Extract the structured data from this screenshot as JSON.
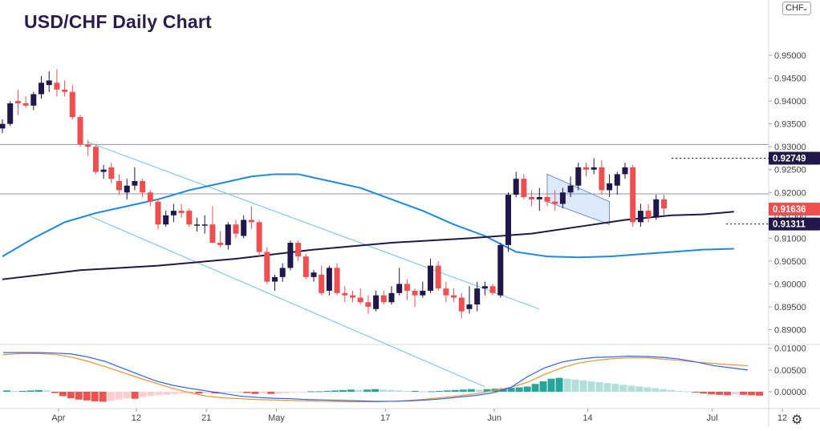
{
  "title": "USD/CHF Daily Chart",
  "currency_selector": {
    "label": "CHF",
    "icon": "chevron-down-icon"
  },
  "settings_icon": "gear-icon",
  "colors": {
    "up": "#22174a",
    "down": "#ef4f4f",
    "ma50": "#1e88e5",
    "ma200": "#22174a",
    "channel": "#6ec1ef",
    "macd": "#2962ff",
    "signal": "#f0912c",
    "hist_up_strong": "#26a69a",
    "hist_up_weak": "#b2dfdb",
    "hist_down_strong": "#ef5350",
    "hist_down_weak": "#ffcdd2"
  },
  "chart_data": [
    {
      "type": "candlestick",
      "title": "USD/CHF Daily Chart",
      "ylim": [
        0.885,
        0.96
      ],
      "y_ticks": [
        "0.95000",
        "0.94500",
        "0.94000",
        "0.93500",
        "0.93000",
        "0.92500",
        "0.92000",
        "0.91500",
        "0.91000",
        "0.90500",
        "0.90000",
        "0.89500",
        "0.89000"
      ],
      "x_ticks": [
        {
          "label": "Apr",
          "index": 7
        },
        {
          "label": "12",
          "index": 17
        },
        {
          "label": "21",
          "index": 26
        },
        {
          "label": "May",
          "index": 35
        },
        {
          "label": "17",
          "index": 49
        },
        {
          "label": "Jun",
          "index": 63
        },
        {
          "label": "14",
          "index": 75
        },
        {
          "label": "Jul",
          "index": 91
        },
        {
          "label": "12",
          "index": 100
        }
      ],
      "candles": [
        [
          0.934,
          0.936,
          0.933,
          0.935
        ],
        [
          0.935,
          0.94,
          0.9345,
          0.9395
        ],
        [
          0.94,
          0.9425,
          0.937,
          0.9395
        ],
        [
          0.9395,
          0.941,
          0.9385,
          0.939
        ],
        [
          0.939,
          0.942,
          0.938,
          0.9415
        ],
        [
          0.9415,
          0.9455,
          0.9405,
          0.944
        ],
        [
          0.9435,
          0.9465,
          0.942,
          0.9445
        ],
        [
          0.944,
          0.947,
          0.941,
          0.9425
        ],
        [
          0.9425,
          0.9445,
          0.941,
          0.942
        ],
        [
          0.942,
          0.9435,
          0.936,
          0.9365
        ],
        [
          0.9365,
          0.937,
          0.93,
          0.9305
        ],
        [
          0.9305,
          0.9315,
          0.928,
          0.93
        ],
        [
          0.93,
          0.9305,
          0.924,
          0.9245
        ],
        [
          0.9245,
          0.926,
          0.923,
          0.925
        ],
        [
          0.9255,
          0.9265,
          0.922,
          0.923
        ],
        [
          0.9225,
          0.924,
          0.9195,
          0.9205
        ],
        [
          0.92,
          0.923,
          0.9185,
          0.9215
        ],
        [
          0.9215,
          0.9255,
          0.9205,
          0.9225
        ],
        [
          0.9225,
          0.923,
          0.919,
          0.92
        ],
        [
          0.92,
          0.9205,
          0.917,
          0.918
        ],
        [
          0.918,
          0.9185,
          0.912,
          0.913
        ],
        [
          0.913,
          0.916,
          0.9125,
          0.915
        ],
        [
          0.915,
          0.9175,
          0.9135,
          0.916
        ],
        [
          0.916,
          0.9175,
          0.9145,
          0.9155
        ],
        [
          0.916,
          0.9165,
          0.9125,
          0.913
        ],
        [
          0.913,
          0.9145,
          0.9115,
          0.913
        ],
        [
          0.913,
          0.915,
          0.911,
          0.913
        ],
        [
          0.913,
          0.917,
          0.9095,
          0.909
        ],
        [
          0.909,
          0.9115,
          0.908,
          0.9085
        ],
        [
          0.9085,
          0.9135,
          0.9075,
          0.913
        ],
        [
          0.913,
          0.914,
          0.91,
          0.911
        ],
        [
          0.9105,
          0.915,
          0.91,
          0.914
        ],
        [
          0.914,
          0.917,
          0.912,
          0.9135
        ],
        [
          0.9135,
          0.914,
          0.906,
          0.907
        ],
        [
          0.907,
          0.908,
          0.9,
          0.9005
        ],
        [
          0.9005,
          0.902,
          0.8985,
          0.9015
        ],
        [
          0.9015,
          0.9045,
          0.9005,
          0.9035
        ],
        [
          0.9035,
          0.9095,
          0.903,
          0.909
        ],
        [
          0.909,
          0.9095,
          0.905,
          0.906
        ],
        [
          0.906,
          0.9065,
          0.901,
          0.9015
        ],
        [
          0.9015,
          0.903,
          0.9005,
          0.9025
        ],
        [
          0.902,
          0.904,
          0.8975,
          0.898
        ],
        [
          0.8985,
          0.904,
          0.8975,
          0.9035
        ],
        [
          0.9035,
          0.9045,
          0.8975,
          0.898
        ],
        [
          0.898,
          0.8995,
          0.896,
          0.8975
        ],
        [
          0.8975,
          0.8985,
          0.896,
          0.897
        ],
        [
          0.897,
          0.899,
          0.8955,
          0.896
        ],
        [
          0.896,
          0.8975,
          0.8935,
          0.895
        ],
        [
          0.8945,
          0.8985,
          0.894,
          0.8975
        ],
        [
          0.8975,
          0.8985,
          0.8955,
          0.896
        ],
        [
          0.896,
          0.8995,
          0.8955,
          0.898
        ],
        [
          0.898,
          0.9035,
          0.8975,
          0.9
        ],
        [
          0.9,
          0.901,
          0.8965,
          0.8985
        ],
        [
          0.8985,
          0.899,
          0.895,
          0.8975
        ],
        [
          0.8975,
          0.9005,
          0.897,
          0.8985
        ],
        [
          0.8985,
          0.9055,
          0.898,
          0.904
        ],
        [
          0.904,
          0.905,
          0.8985,
          0.899
        ],
        [
          0.899,
          0.9005,
          0.896,
          0.8975
        ],
        [
          0.8975,
          0.899,
          0.896,
          0.897
        ],
        [
          0.897,
          0.898,
          0.8925,
          0.894
        ],
        [
          0.8945,
          0.8995,
          0.8935,
          0.8955
        ],
        [
          0.8955,
          0.9005,
          0.894,
          0.899
        ],
        [
          0.899,
          0.9005,
          0.8975,
          0.8995
        ],
        [
          0.8995,
          0.9,
          0.8975,
          0.898
        ],
        [
          0.8975,
          0.909,
          0.897,
          0.9085
        ],
        [
          0.9085,
          0.92,
          0.907,
          0.9195
        ],
        [
          0.9195,
          0.9245,
          0.919,
          0.923
        ],
        [
          0.923,
          0.924,
          0.9185,
          0.919
        ],
        [
          0.919,
          0.9205,
          0.917,
          0.9185
        ],
        [
          0.9185,
          0.921,
          0.916,
          0.919
        ],
        [
          0.919,
          0.92,
          0.917,
          0.918
        ],
        [
          0.918,
          0.9205,
          0.916,
          0.9175
        ],
        [
          0.9175,
          0.921,
          0.9165,
          0.92
        ],
        [
          0.92,
          0.9235,
          0.919,
          0.9215
        ],
        [
          0.9215,
          0.9265,
          0.9205,
          0.9255
        ],
        [
          0.9255,
          0.9265,
          0.9235,
          0.925
        ],
        [
          0.925,
          0.9275,
          0.924,
          0.9255
        ],
        [
          0.9255,
          0.927,
          0.9195,
          0.9205
        ],
        [
          0.9205,
          0.924,
          0.919,
          0.922
        ],
        [
          0.9215,
          0.9245,
          0.9195,
          0.924
        ],
        [
          0.924,
          0.9265,
          0.923,
          0.9255
        ],
        [
          0.9255,
          0.926,
          0.9125,
          0.9135
        ],
        [
          0.9135,
          0.9175,
          0.9125,
          0.916
        ],
        [
          0.916,
          0.9175,
          0.9135,
          0.9145
        ],
        [
          0.9145,
          0.9195,
          0.914,
          0.9185
        ],
        [
          0.9185,
          0.9195,
          0.915,
          0.9165
        ]
      ],
      "x_start_index": 0,
      "ma50_points": [
        [
          0,
          0.906
        ],
        [
          4,
          0.91
        ],
        [
          8,
          0.9135
        ],
        [
          12,
          0.9155
        ],
        [
          16,
          0.917
        ],
        [
          20,
          0.9185
        ],
        [
          24,
          0.9205
        ],
        [
          28,
          0.922
        ],
        [
          32,
          0.9235
        ],
        [
          35,
          0.924
        ],
        [
          38,
          0.924
        ],
        [
          42,
          0.9225
        ],
        [
          46,
          0.921
        ],
        [
          50,
          0.9185
        ],
        [
          54,
          0.916
        ],
        [
          58,
          0.913
        ],
        [
          62,
          0.9105
        ],
        [
          66,
          0.907
        ],
        [
          70,
          0.906
        ],
        [
          74,
          0.9058
        ],
        [
          78,
          0.906
        ],
        [
          82,
          0.9065
        ],
        [
          86,
          0.907
        ],
        [
          90,
          0.9075
        ],
        [
          94,
          0.9077
        ]
      ],
      "ma200_points": [
        [
          0,
          0.901
        ],
        [
          10,
          0.903
        ],
        [
          20,
          0.904
        ],
        [
          30,
          0.9055
        ],
        [
          40,
          0.9075
        ],
        [
          50,
          0.909
        ],
        [
          60,
          0.91
        ],
        [
          68,
          0.911
        ],
        [
          74,
          0.9125
        ],
        [
          80,
          0.914
        ],
        [
          86,
          0.915
        ],
        [
          90,
          0.9152
        ],
        [
          94,
          0.9158
        ]
      ],
      "channel": {
        "upper": [
          [
            11,
            0.931
          ],
          [
            69,
            0.8945
          ]
        ],
        "lower": [
          [
            11,
            0.915
          ],
          [
            62,
            0.8775
          ]
        ]
      },
      "flag": [
        [
          70,
          0.924
        ],
        [
          78,
          0.918
        ],
        [
          78,
          0.913
        ],
        [
          70,
          0.918
        ]
      ],
      "resistance_lines": [
        0.9305,
        0.9197
      ],
      "dotted_levels": [
        {
          "value": 0.92749,
          "label": "0.92749",
          "from_index": 86
        },
        {
          "value": 0.91311,
          "label": "0.91311",
          "from_index": 93
        }
      ],
      "price_badges": [
        {
          "value": 0.91636,
          "label": "0.91636",
          "kind": "last"
        },
        {
          "value": 0.92749,
          "label": "0.92749",
          "kind": "level"
        },
        {
          "value": 0.91311,
          "label": "0.91311",
          "kind": "level"
        }
      ]
    },
    {
      "type": "macd",
      "ylim": [
        -0.0035,
        0.0105
      ],
      "y_ticks": [
        "0.01000",
        "0.00500",
        "0.00000"
      ],
      "macd_line": [
        0.009,
        0.009,
        0.009,
        0.0089,
        0.0087,
        0.008,
        0.007,
        0.0055,
        0.004,
        0.0025,
        0.0015,
        0.0008,
        0.0002,
        -0.0004,
        -0.001,
        -0.0013,
        -0.0015,
        -0.0016,
        -0.0018,
        -0.0019,
        -0.002,
        -0.0021,
        -0.0022,
        -0.0022,
        -0.0021,
        -0.0019,
        -0.0016,
        -0.0012,
        -0.0008,
        -0.0002,
        0.001,
        0.0035,
        0.0055,
        0.0068,
        0.0075,
        0.0079,
        0.008,
        0.0082,
        0.0081,
        0.0079,
        0.0075,
        0.0068,
        0.006,
        0.0055,
        0.005
      ],
      "signal_line": [
        0.0085,
        0.0088,
        0.0088,
        0.0086,
        0.008,
        0.007,
        0.0058,
        0.0045,
        0.0032,
        0.002,
        0.0008,
        -0.0002,
        -0.001,
        -0.0014,
        -0.0016,
        -0.0018,
        -0.0019,
        -0.002,
        -0.0021,
        -0.0022,
        -0.0023,
        -0.0023,
        -0.0023,
        -0.0022,
        -0.002,
        -0.0017,
        -0.0013,
        -0.0009,
        -0.0004,
        0.0003,
        0.001,
        0.0022,
        0.004,
        0.0055,
        0.0066,
        0.0072,
        0.0076,
        0.0078,
        0.0078,
        0.0075,
        0.0072,
        0.0068,
        0.0065,
        0.0062,
        0.006
      ],
      "histogram": [
        0.0003,
        0.0002,
        0.0002,
        0.0003,
        0.0004,
        0.0003,
        -0.0003,
        -0.001,
        -0.0015,
        -0.0018,
        -0.002,
        -0.0022,
        -0.0023,
        -0.0021,
        -0.0018,
        -0.0015,
        -0.0016,
        -0.0012,
        -0.001,
        -0.0008,
        -0.0007,
        -0.0005,
        -0.0004,
        -0.0003,
        -0.0004,
        -0.0003,
        -0.0004,
        -0.0003,
        -0.0002,
        -0.0001,
        -0.0003,
        -0.0005,
        -0.0004,
        -0.0005,
        -0.0004,
        -0.0003,
        -0.0002,
        -0.0001,
        0.0001,
        0.0001,
        0.0002,
        0.0003,
        0.0004,
        0.0005,
        0.0004,
        0.0005,
        0.0006,
        0.0005,
        0.0004,
        0.0003,
        0.0002,
        0.0002,
        0.0001,
        0.0001,
        0.0002,
        0.0003,
        0.0004,
        0.0005,
        0.0006,
        0.0005,
        0.0006,
        0.0007,
        0.0008,
        0.0009,
        0.001,
        0.0012,
        0.0018,
        0.0024,
        0.003,
        0.0032,
        0.003,
        0.0028,
        0.0026,
        0.0024,
        0.0022,
        0.002,
        0.0018,
        0.0016,
        0.0014,
        0.0012,
        0.001,
        0.0008,
        0.0006,
        0.0004,
        0.0002,
        0.0001,
        -0.0002,
        -0.0004,
        -0.0006,
        -0.0007,
        -0.0008,
        -0.0006,
        -0.0007,
        -0.0008,
        -0.0009
      ]
    }
  ]
}
